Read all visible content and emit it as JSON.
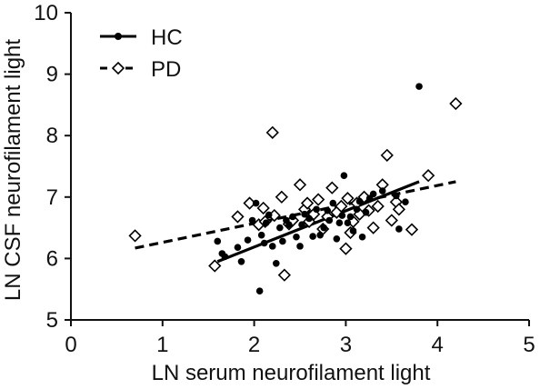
{
  "chart_data": {
    "type": "scatter",
    "title": "",
    "xlabel": "LN serum neurofilament light",
    "ylabel": "LN CSF neurofilament light",
    "xlim": [
      0,
      5
    ],
    "ylim": [
      5,
      10
    ],
    "x_ticks": [
      0,
      1,
      2,
      3,
      4,
      5
    ],
    "y_ticks": [
      5,
      6,
      7,
      8,
      9,
      10
    ],
    "grid": false,
    "legend_position": "top-left",
    "series": [
      {
        "name": "HC",
        "marker": "filled-circle",
        "line_style": "solid",
        "color": "#000000",
        "fit_line": {
          "x": [
            1.6,
            3.8
          ],
          "y": [
            5.95,
            7.25
          ]
        },
        "points": [
          {
            "x": 1.6,
            "y": 6.28
          },
          {
            "x": 1.65,
            "y": 6.08
          },
          {
            "x": 1.68,
            "y": 6.03
          },
          {
            "x": 1.82,
            "y": 6.18
          },
          {
            "x": 1.86,
            "y": 5.95
          },
          {
            "x": 1.93,
            "y": 6.3
          },
          {
            "x": 1.98,
            "y": 6.62
          },
          {
            "x": 2.02,
            "y": 6.9
          },
          {
            "x": 2.06,
            "y": 5.47
          },
          {
            "x": 2.08,
            "y": 6.38
          },
          {
            "x": 2.11,
            "y": 6.25
          },
          {
            "x": 2.13,
            "y": 6.58
          },
          {
            "x": 2.16,
            "y": 6.71
          },
          {
            "x": 2.2,
            "y": 6.2
          },
          {
            "x": 2.24,
            "y": 5.92
          },
          {
            "x": 2.28,
            "y": 6.5
          },
          {
            "x": 2.31,
            "y": 6.28
          },
          {
            "x": 2.35,
            "y": 6.62
          },
          {
            "x": 2.38,
            "y": 6.55
          },
          {
            "x": 2.42,
            "y": 6.68
          },
          {
            "x": 2.46,
            "y": 6.35
          },
          {
            "x": 2.5,
            "y": 6.2
          },
          {
            "x": 2.52,
            "y": 6.55
          },
          {
            "x": 2.55,
            "y": 6.72
          },
          {
            "x": 2.6,
            "y": 6.65
          },
          {
            "x": 2.64,
            "y": 6.36
          },
          {
            "x": 2.68,
            "y": 6.8
          },
          {
            "x": 2.72,
            "y": 6.38
          },
          {
            "x": 2.76,
            "y": 6.5
          },
          {
            "x": 2.8,
            "y": 6.78
          },
          {
            "x": 2.82,
            "y": 6.62
          },
          {
            "x": 2.86,
            "y": 6.9
          },
          {
            "x": 2.9,
            "y": 6.32
          },
          {
            "x": 2.93,
            "y": 6.58
          },
          {
            "x": 2.96,
            "y": 6.7
          },
          {
            "x": 2.98,
            "y": 7.35
          },
          {
            "x": 3.02,
            "y": 6.58
          },
          {
            "x": 3.05,
            "y": 6.68
          },
          {
            "x": 3.08,
            "y": 6.45
          },
          {
            "x": 3.12,
            "y": 6.8
          },
          {
            "x": 3.15,
            "y": 6.93
          },
          {
            "x": 3.18,
            "y": 6.35
          },
          {
            "x": 3.22,
            "y": 6.75
          },
          {
            "x": 3.26,
            "y": 6.98
          },
          {
            "x": 3.3,
            "y": 7.05
          },
          {
            "x": 3.4,
            "y": 7.1
          },
          {
            "x": 3.55,
            "y": 7.02
          },
          {
            "x": 3.58,
            "y": 6.48
          },
          {
            "x": 3.65,
            "y": 6.92
          },
          {
            "x": 3.8,
            "y": 8.8
          }
        ]
      },
      {
        "name": "PD",
        "marker": "open-diamond",
        "line_style": "dashed",
        "color": "#000000",
        "fit_line": {
          "x": [
            0.7,
            4.2
          ],
          "y": [
            6.17,
            7.25
          ]
        },
        "points": [
          {
            "x": 0.7,
            "y": 6.37
          },
          {
            "x": 1.57,
            "y": 5.88
          },
          {
            "x": 1.82,
            "y": 6.68
          },
          {
            "x": 1.95,
            "y": 6.9
          },
          {
            "x": 2.05,
            "y": 6.55
          },
          {
            "x": 2.1,
            "y": 6.82
          },
          {
            "x": 2.12,
            "y": 6.6
          },
          {
            "x": 2.2,
            "y": 8.05
          },
          {
            "x": 2.22,
            "y": 6.7
          },
          {
            "x": 2.3,
            "y": 7.0
          },
          {
            "x": 2.33,
            "y": 5.73
          },
          {
            "x": 2.38,
            "y": 6.56
          },
          {
            "x": 2.42,
            "y": 6.62
          },
          {
            "x": 2.5,
            "y": 7.2
          },
          {
            "x": 2.55,
            "y": 6.8
          },
          {
            "x": 2.58,
            "y": 6.9
          },
          {
            "x": 2.6,
            "y": 6.6
          },
          {
            "x": 2.65,
            "y": 6.72
          },
          {
            "x": 2.7,
            "y": 6.96
          },
          {
            "x": 2.75,
            "y": 6.48
          },
          {
            "x": 2.8,
            "y": 6.68
          },
          {
            "x": 2.85,
            "y": 7.15
          },
          {
            "x": 2.9,
            "y": 6.75
          },
          {
            "x": 2.95,
            "y": 6.85
          },
          {
            "x": 3.0,
            "y": 6.16
          },
          {
            "x": 3.02,
            "y": 6.98
          },
          {
            "x": 3.05,
            "y": 6.42
          },
          {
            "x": 3.08,
            "y": 6.6
          },
          {
            "x": 3.12,
            "y": 6.9
          },
          {
            "x": 3.15,
            "y": 6.72
          },
          {
            "x": 3.2,
            "y": 7.0
          },
          {
            "x": 3.25,
            "y": 6.78
          },
          {
            "x": 3.3,
            "y": 6.5
          },
          {
            "x": 3.35,
            "y": 6.85
          },
          {
            "x": 3.4,
            "y": 7.2
          },
          {
            "x": 3.45,
            "y": 7.68
          },
          {
            "x": 3.5,
            "y": 6.62
          },
          {
            "x": 3.55,
            "y": 6.92
          },
          {
            "x": 3.58,
            "y": 6.8
          },
          {
            "x": 3.72,
            "y": 6.47
          },
          {
            "x": 3.9,
            "y": 7.35
          },
          {
            "x": 4.2,
            "y": 8.52
          }
        ]
      }
    ]
  }
}
